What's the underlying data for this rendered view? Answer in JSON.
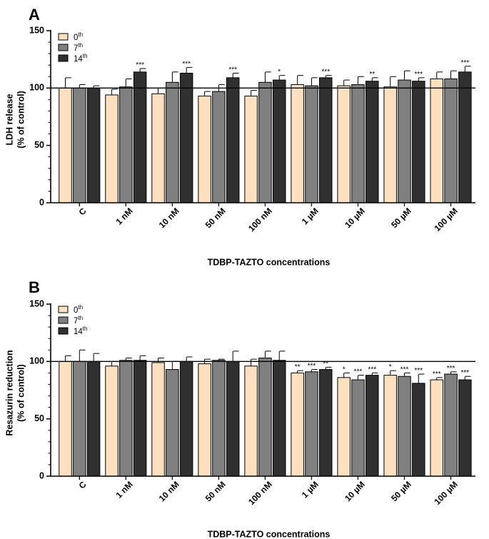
{
  "chart_data": [
    {
      "type": "bar",
      "panel": "A",
      "xlabel": "TDBP-TAZTO concentrations",
      "ylabel_lines": [
        "LDH release",
        "(% of control)"
      ],
      "ylim": [
        0,
        150
      ],
      "yticks": [
        0,
        50,
        100,
        150
      ],
      "reference_line": 100,
      "legend_position": "top-left",
      "categories": [
        "C",
        "1 nM",
        "10 nM",
        "50 nM",
        "100 nM",
        "1 µM",
        "10 µM",
        "50 µM",
        "100 µM"
      ],
      "series": [
        {
          "name": "0",
          "sup": "th",
          "color": "#fde0c0",
          "values": [
            100,
            94,
            95,
            93,
            93,
            103,
            102,
            101,
            108
          ],
          "errors": [
            9,
            5,
            5,
            4,
            5,
            8,
            5,
            9,
            6
          ],
          "sig": [
            "",
            "",
            "",
            "",
            "",
            "",
            "",
            "",
            ""
          ]
        },
        {
          "name": "7",
          "sup": "th",
          "color": "#808080",
          "values": [
            100,
            101,
            105,
            97,
            105,
            102,
            103,
            107,
            108
          ],
          "errors": [
            3,
            7,
            9,
            6,
            9,
            7,
            7,
            8,
            7
          ],
          "sig": [
            "",
            "",
            "",
            "",
            "",
            "",
            "",
            "",
            ""
          ]
        },
        {
          "name": "14",
          "sup": "th",
          "color": "#303030",
          "values": [
            100,
            114,
            113,
            109,
            107,
            109,
            106,
            106,
            114
          ],
          "errors": [
            2,
            3,
            5,
            4,
            4,
            2,
            3,
            3,
            5
          ],
          "sig": [
            "",
            "***",
            "***",
            "***",
            "*",
            "***",
            "**",
            "***",
            "***"
          ]
        }
      ]
    },
    {
      "type": "bar",
      "panel": "B",
      "xlabel": "TDBP-TAZTO concentrations",
      "ylabel_lines": [
        "Resazurin reduction",
        "(% of control)"
      ],
      "ylim": [
        0,
        150
      ],
      "yticks": [
        0,
        50,
        100,
        150
      ],
      "reference_line": 100,
      "legend_position": "top-left",
      "categories": [
        "C",
        "1 nM",
        "10 nM",
        "50 nM",
        "100 nM",
        "1 µM",
        "10 µM",
        "50 µM",
        "100 µM"
      ],
      "series": [
        {
          "name": "0",
          "sup": "th",
          "color": "#fde0c0",
          "values": [
            100,
            96,
            99,
            98,
            96,
            90,
            86,
            88,
            84
          ],
          "errors": [
            5,
            4,
            4,
            4,
            6,
            2,
            4,
            4,
            2
          ],
          "sig": [
            "",
            "",
            "",
            "",
            "",
            "**",
            "*",
            "*",
            "***"
          ]
        },
        {
          "name": "7",
          "sup": "th",
          "color": "#808080",
          "values": [
            100,
            101,
            93,
            101,
            103,
            91,
            84,
            87,
            89
          ],
          "errors": [
            10,
            2,
            7,
            1,
            6,
            2,
            4,
            3,
            2
          ],
          "sig": [
            "",
            "",
            "",
            "",
            "",
            "***",
            "***",
            "***",
            "***"
          ]
        },
        {
          "name": "14",
          "sup": "th",
          "color": "#303030",
          "values": [
            100,
            101,
            100,
            100,
            101,
            93,
            88,
            81,
            84
          ],
          "errors": [
            7,
            4,
            4,
            9,
            8,
            2,
            2,
            8,
            3
          ],
          "sig": [
            "",
            "",
            "",
            "",
            "",
            "**",
            "***",
            "***",
            "***"
          ]
        }
      ]
    }
  ]
}
